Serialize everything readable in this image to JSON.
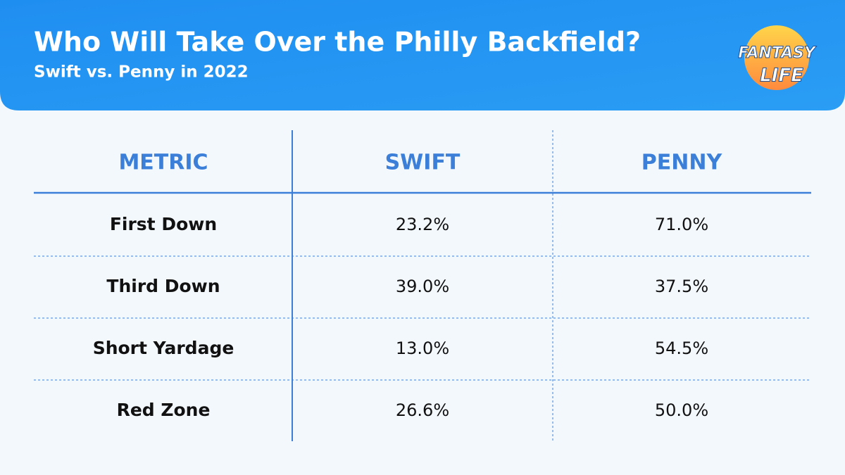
{
  "header": {
    "title": "Who Will Take Over the Philly Backfield?",
    "subtitle": "Swift vs. Penny in 2022"
  },
  "logo": {
    "line1": "FANTASY",
    "line2": "LIFE"
  },
  "table": {
    "columns": [
      "METRIC",
      "SWIFT",
      "PENNY"
    ],
    "rows": [
      [
        "First Down",
        "23.2%",
        "71.0%"
      ],
      [
        "Third Down",
        "39.0%",
        "37.5%"
      ],
      [
        "Short Yardage",
        "13.0%",
        "54.5%"
      ],
      [
        "Red Zone",
        "26.6%",
        "50.0%"
      ]
    ]
  }
}
